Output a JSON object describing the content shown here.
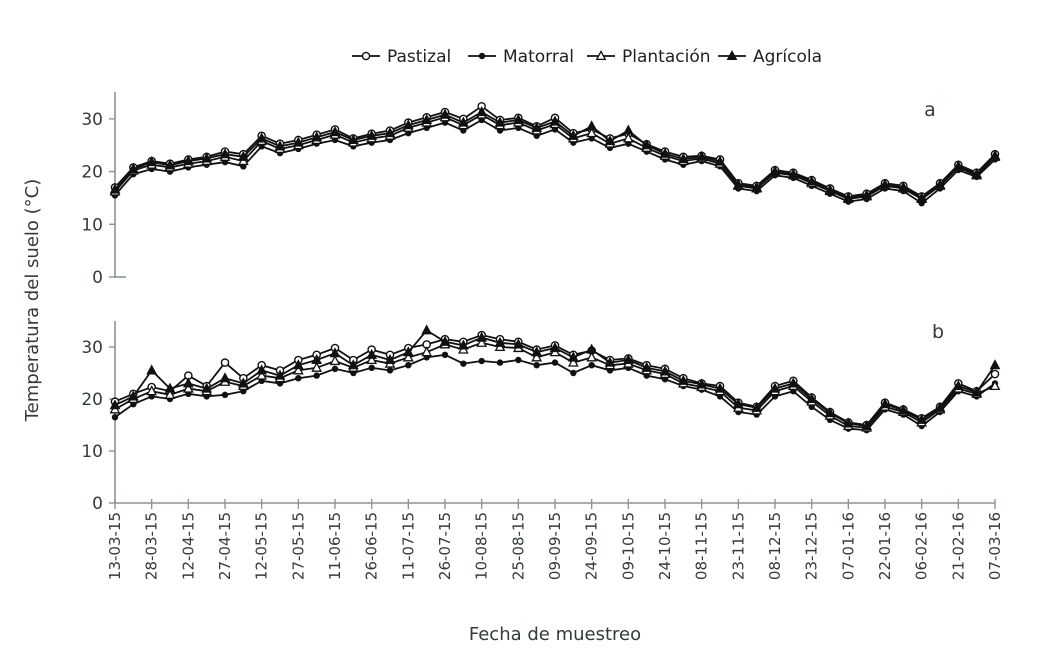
{
  "figure": {
    "ylabel": "Temperatura del suelo (°C)",
    "xlabel": "Fecha de muestreo"
  },
  "colors": {
    "line": "#111111",
    "axis": "#8a9694",
    "text": "#333b3b",
    "marker_open_fill": "#ffffff"
  },
  "legend": [
    {
      "label": "Pastizal",
      "marker": "circle-open"
    },
    {
      "label": "Matorral",
      "marker": "circle-filled"
    },
    {
      "label": "Plantación",
      "marker": "triangle-open"
    },
    {
      "label": "Agrícola",
      "marker": "triangle-filled"
    }
  ],
  "chart_data": [
    {
      "type": "line",
      "panel": "a",
      "ylabel": "Temperatura del suelo (°C)",
      "ylim": [
        0,
        35
      ],
      "y_ticks": [
        0,
        10,
        20,
        30
      ],
      "grid": false,
      "legend_position": "top",
      "x_labels": [
        "13-03-15",
        "28-03-15",
        "12-04-15",
        "27-04-15",
        "12-05-15",
        "27-05-15",
        "11-06-15",
        "26-06-15",
        "11-07-15",
        "26-07-15",
        "10-08-15",
        "25-08-15",
        "09-09-15",
        "24-09-15",
        "09-10-15",
        "24-10-15",
        "08-11-15",
        "23-11-15",
        "08-12-15",
        "23-12-15",
        "07-01-16",
        "22-01-16",
        "06-02-16",
        "21-02-16",
        "07-03-16"
      ],
      "points_per_label_interval": 2,
      "series": [
        {
          "name": "Pastizal",
          "marker": "circle-open",
          "values": [
            17.0,
            20.8,
            22.0,
            21.5,
            22.3,
            22.8,
            23.8,
            23.3,
            26.8,
            25.3,
            26.0,
            27.0,
            28.0,
            26.3,
            27.2,
            27.8,
            29.3,
            30.3,
            31.3,
            30.0,
            32.4,
            29.8,
            30.2,
            28.6,
            30.2,
            27.3,
            28.0,
            26.3,
            27.2,
            25.2,
            23.8,
            22.8,
            23.0,
            22.3,
            17.8,
            17.3,
            20.3,
            19.8,
            18.4,
            16.8,
            15.3,
            15.8,
            17.8,
            17.3,
            15.3,
            17.8,
            21.3,
            19.8,
            23.3
          ]
        },
        {
          "name": "Matorral",
          "marker": "circle-filled",
          "values": [
            15.5,
            19.5,
            20.5,
            20.0,
            20.8,
            21.3,
            21.8,
            21.0,
            24.8,
            23.5,
            24.3,
            25.3,
            26.0,
            24.8,
            25.5,
            26.0,
            27.3,
            28.3,
            29.3,
            27.8,
            29.8,
            27.8,
            28.3,
            26.8,
            28.0,
            25.5,
            26.3,
            24.5,
            25.3,
            23.8,
            22.3,
            21.3,
            22.0,
            21.0,
            16.8,
            16.3,
            19.3,
            18.8,
            17.3,
            15.8,
            14.3,
            14.8,
            16.8,
            16.3,
            14.0,
            16.8,
            20.3,
            19.0,
            22.3
          ]
        },
        {
          "name": "Plantación",
          "marker": "triangle-open",
          "values": [
            16.2,
            20.2,
            21.3,
            20.8,
            21.5,
            22.0,
            22.8,
            22.0,
            25.8,
            24.3,
            25.0,
            26.0,
            27.0,
            25.5,
            26.3,
            26.8,
            28.3,
            29.3,
            30.3,
            28.8,
            30.8,
            28.8,
            29.3,
            27.8,
            29.0,
            26.3,
            27.3,
            25.3,
            26.3,
            24.5,
            23.0,
            22.0,
            22.5,
            21.5,
            17.3,
            16.8,
            19.8,
            19.3,
            17.8,
            16.3,
            14.8,
            15.3,
            17.3,
            16.8,
            14.8,
            17.3,
            20.8,
            19.3,
            22.8
          ]
        },
        {
          "name": "Agrícola",
          "marker": "triangle-filled",
          "values": [
            16.6,
            20.5,
            21.8,
            21.2,
            22.0,
            22.5,
            23.3,
            22.8,
            26.3,
            24.8,
            25.5,
            26.5,
            27.5,
            26.0,
            26.8,
            27.3,
            28.8,
            29.8,
            30.8,
            29.3,
            31.3,
            29.3,
            29.8,
            28.3,
            29.5,
            26.8,
            28.6,
            25.8,
            27.8,
            25.0,
            23.4,
            22.4,
            22.8,
            21.9,
            17.5,
            17.0,
            20.0,
            19.5,
            18.1,
            16.5,
            15.0,
            15.5,
            17.5,
            17.0,
            15.0,
            17.5,
            21.0,
            19.5,
            23.0
          ]
        }
      ]
    },
    {
      "type": "line",
      "panel": "b",
      "ylabel": "Temperatura del suelo (°C)",
      "xlabel": "Fecha de muestreo",
      "ylim": [
        0,
        35
      ],
      "y_ticks": [
        0,
        10,
        20,
        30
      ],
      "grid": false,
      "x_labels": [
        "13-03-15",
        "28-03-15",
        "12-04-15",
        "27-04-15",
        "12-05-15",
        "27-05-15",
        "11-06-15",
        "26-06-15",
        "11-07-15",
        "26-07-15",
        "10-08-15",
        "25-08-15",
        "09-09-15",
        "24-09-15",
        "09-10-15",
        "24-10-15",
        "08-11-15",
        "23-11-15",
        "08-12-15",
        "23-12-15",
        "07-01-16",
        "22-01-16",
        "06-02-16",
        "21-02-16",
        "07-03-16"
      ],
      "points_per_label_interval": 2,
      "series": [
        {
          "name": "Pastizal",
          "marker": "circle-open",
          "values": [
            19.5,
            21.0,
            22.3,
            21.5,
            24.5,
            22.5,
            27.0,
            24.0,
            26.5,
            25.5,
            27.5,
            28.5,
            29.8,
            27.5,
            29.5,
            28.5,
            29.8,
            30.5,
            31.5,
            31.0,
            32.3,
            31.5,
            31.0,
            29.5,
            30.3,
            28.5,
            29.3,
            27.5,
            27.8,
            26.5,
            25.8,
            24.0,
            23.0,
            22.5,
            19.3,
            18.5,
            22.5,
            23.5,
            20.3,
            17.5,
            15.5,
            15.0,
            19.3,
            18.0,
            16.3,
            18.5,
            23.0,
            21.5,
            24.8
          ]
        },
        {
          "name": "Matorral",
          "marker": "circle-filled",
          "values": [
            16.5,
            19.0,
            20.5,
            20.0,
            21.0,
            20.5,
            20.8,
            21.5,
            23.5,
            23.0,
            24.0,
            24.5,
            25.8,
            25.0,
            26.0,
            25.5,
            26.5,
            28.0,
            28.5,
            26.8,
            27.3,
            27.0,
            27.5,
            26.5,
            27.0,
            25.0,
            26.5,
            25.5,
            26.0,
            24.5,
            23.8,
            22.5,
            21.8,
            20.5,
            17.5,
            17.0,
            20.5,
            21.5,
            18.5,
            16.0,
            14.3,
            14.0,
            18.0,
            17.0,
            14.8,
            17.5,
            21.5,
            20.5,
            23.0
          ]
        },
        {
          "name": "Plantación",
          "marker": "triangle-open",
          "values": [
            18.0,
            20.0,
            21.5,
            20.8,
            22.0,
            21.5,
            23.3,
            22.5,
            24.5,
            24.0,
            25.5,
            26.0,
            27.3,
            26.0,
            27.5,
            26.8,
            28.0,
            29.0,
            30.5,
            29.5,
            30.8,
            30.0,
            29.8,
            28.0,
            29.0,
            27.0,
            28.0,
            26.5,
            26.8,
            25.5,
            24.8,
            23.0,
            22.3,
            21.5,
            18.3,
            17.8,
            21.5,
            22.5,
            19.5,
            16.8,
            14.8,
            14.5,
            18.5,
            17.5,
            15.5,
            18.0,
            22.0,
            21.0,
            22.5
          ]
        },
        {
          "name": "Agrícola",
          "marker": "triangle-filled",
          "values": [
            18.8,
            20.5,
            25.5,
            22.0,
            23.0,
            22.0,
            24.0,
            23.0,
            25.5,
            24.5,
            26.5,
            27.5,
            28.8,
            26.5,
            28.5,
            27.5,
            29.0,
            33.2,
            31.0,
            30.3,
            31.8,
            30.8,
            30.5,
            29.0,
            29.8,
            28.0,
            29.5,
            27.0,
            27.5,
            26.0,
            25.3,
            23.5,
            22.8,
            22.0,
            19.0,
            18.3,
            22.0,
            23.0,
            20.0,
            17.3,
            15.3,
            14.8,
            19.0,
            17.8,
            16.0,
            18.3,
            22.5,
            21.3,
            26.5
          ]
        }
      ]
    }
  ]
}
